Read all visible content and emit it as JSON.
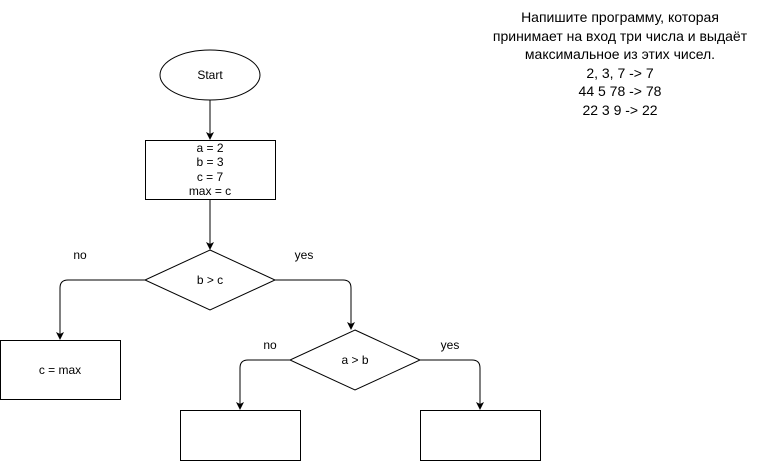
{
  "diagram": {
    "start_label": "Start",
    "init_lines": [
      "a = 2",
      "b = 3",
      "c = 7",
      "max = c"
    ],
    "decision1": {
      "label": "b > c",
      "no_label": "no",
      "yes_label": "yes"
    },
    "decision2": {
      "label": "a > b",
      "no_label": "no",
      "yes_label": "yes"
    },
    "assign_box_label": "c = max",
    "empty_box_left_label": "",
    "empty_box_right_label": ""
  },
  "task": {
    "lines": [
      "Напишите программу, которая",
      "принимает на вход три числа и выдаёт",
      "максимальное из этих чисел.",
      "2, 3, 7 -> 7",
      "44 5 78 -> 78",
      "22 3 9 -> 22"
    ]
  }
}
